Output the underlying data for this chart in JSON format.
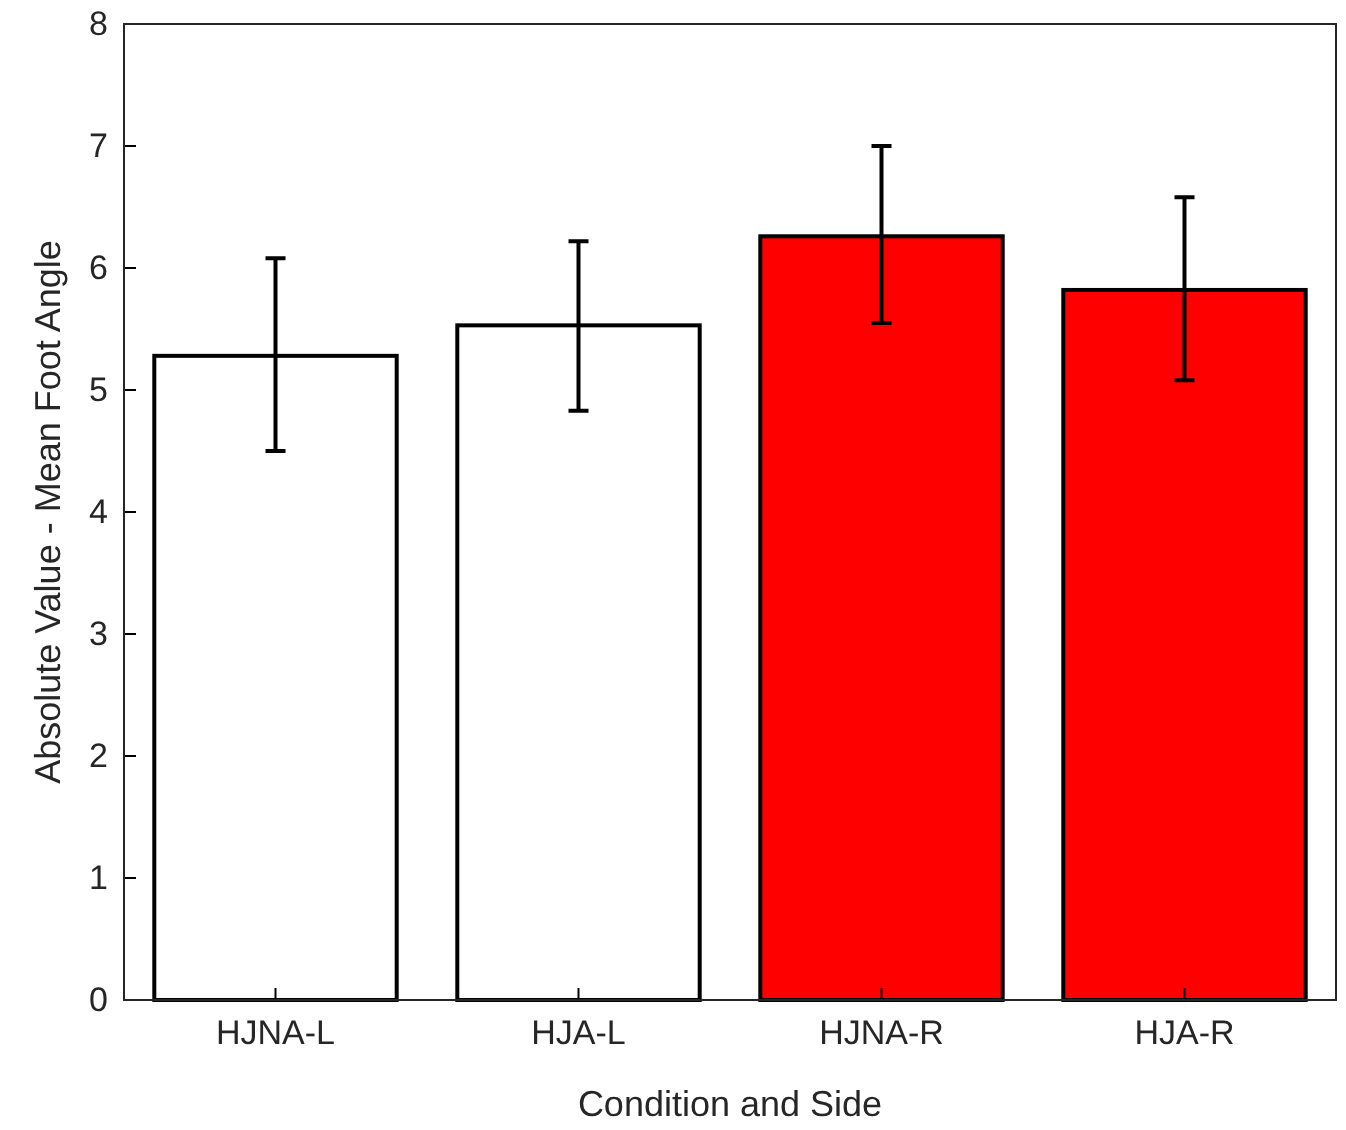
{
  "chart_data": {
    "type": "bar",
    "xlabel": "Condition and Side",
    "ylabel": "Absolute Value - Mean Foot Angle",
    "categories": [
      "HJNA-L",
      "HJA-L",
      "HJNA-R",
      "HJA-R"
    ],
    "values": [
      5.28,
      5.53,
      6.26,
      5.82
    ],
    "colors": [
      "#ffffff",
      "#ffffff",
      "#ff0000",
      "#ff0000"
    ],
    "errors": [
      [
        4.5,
        6.08
      ],
      [
        4.83,
        6.22
      ],
      [
        5.55,
        7.0
      ],
      [
        5.08,
        6.58
      ]
    ],
    "ylim": [
      0,
      8
    ],
    "yticks": [
      0,
      1,
      2,
      3,
      4,
      5,
      6,
      7,
      8
    ],
    "grid": false
  }
}
